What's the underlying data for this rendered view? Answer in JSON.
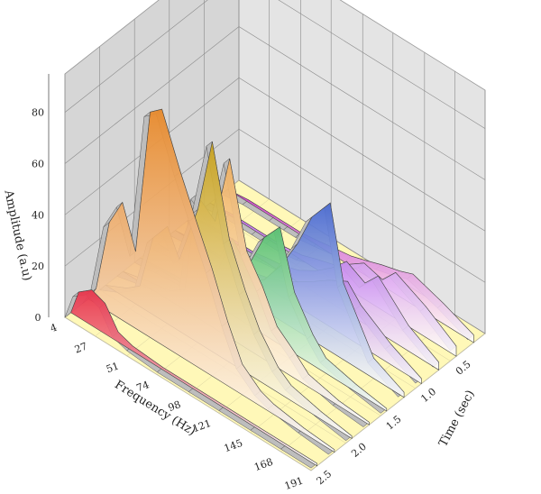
{
  "chart_data": {
    "type": "3d-waterfall",
    "title": "",
    "xlabel": "Frequency (Hz)",
    "ylabel": "Time (sec)",
    "zlabel": "Amplitude (a.u)",
    "x_ticks": [
      "4",
      "27",
      "51",
      "74",
      "98",
      "121",
      "145",
      "168",
      "191"
    ],
    "y_ticks": [
      "0.5",
      "1.0",
      "1.5",
      "2.0",
      "2.5"
    ],
    "z_ticks": [
      "0",
      "20",
      "40",
      "60",
      "80"
    ],
    "zlim": [
      0,
      95
    ],
    "grid": true,
    "colors": {
      "floor": "#fff8b8",
      "back_wall": "#d6d6d6",
      "side_wall": "#e4e4e4",
      "grid": "#8a8a8a"
    },
    "series": [
      {
        "time": 2.5,
        "color": "#e8344a",
        "x": [
          4,
          10,
          20,
          30,
          40,
          51,
          74,
          98,
          121,
          145,
          168,
          191
        ],
        "values": [
          0,
          10,
          14,
          12,
          4,
          2,
          1,
          1,
          1,
          1,
          1,
          1
        ]
      },
      {
        "time": 2.25,
        "color": "#e88a2c",
        "x": [
          4,
          10,
          20,
          30,
          40,
          51,
          60,
          74,
          85,
          98,
          110,
          121,
          135,
          145,
          168,
          191
        ],
        "values": [
          0,
          6,
          35,
          46,
          30,
          88,
          92,
          72,
          58,
          42,
          25,
          12,
          6,
          4,
          2,
          1
        ]
      },
      {
        "time": 2.0,
        "color": "#c9a21c",
        "x": [
          4,
          20,
          30,
          40,
          51,
          60,
          74,
          85,
          98,
          110,
          121,
          135,
          145,
          168,
          191
        ],
        "values": [
          0,
          4,
          8,
          30,
          38,
          28,
          52,
          82,
          48,
          32,
          20,
          10,
          6,
          3,
          1
        ]
      },
      {
        "time": 1.75,
        "color": "#f0b060",
        "x": [
          4,
          20,
          40,
          51,
          60,
          74,
          85,
          98,
          110,
          121,
          135,
          145,
          168,
          191
        ],
        "values": [
          0,
          2,
          4,
          8,
          48,
          42,
          70,
          38,
          28,
          16,
          10,
          5,
          2,
          1
        ]
      },
      {
        "time": 1.5,
        "color": "#58c070",
        "x": [
          4,
          20,
          40,
          51,
          60,
          74,
          85,
          98,
          110,
          121,
          135,
          145,
          168,
          191
        ],
        "values": [
          0,
          1,
          2,
          4,
          10,
          30,
          22,
          38,
          46,
          24,
          12,
          6,
          3,
          1
        ]
      },
      {
        "time": 1.25,
        "color": "#4a6ad0",
        "x": [
          4,
          20,
          40,
          51,
          60,
          74,
          85,
          98,
          110,
          121,
          135,
          145,
          168,
          191
        ],
        "values": [
          0,
          1,
          1,
          2,
          4,
          8,
          12,
          22,
          34,
          48,
          58,
          30,
          8,
          2
        ]
      },
      {
        "time": 1.0,
        "color": "#a050e0",
        "x": [
          4,
          20,
          40,
          51,
          60,
          74,
          85,
          98,
          110,
          121,
          135,
          145,
          168,
          191
        ],
        "values": [
          0,
          1,
          1,
          1,
          2,
          4,
          6,
          10,
          14,
          18,
          22,
          16,
          8,
          2
        ]
      },
      {
        "time": 0.75,
        "color": "#b058e8",
        "x": [
          4,
          20,
          40,
          51,
          60,
          74,
          85,
          98,
          110,
          121,
          135,
          145,
          168,
          191
        ],
        "values": [
          0,
          1,
          1,
          1,
          2,
          3,
          5,
          9,
          14,
          20,
          16,
          22,
          10,
          3
        ]
      },
      {
        "time": 0.5,
        "color": "#c060e8",
        "x": [
          4,
          20,
          40,
          51,
          60,
          74,
          85,
          98,
          110,
          121,
          135,
          145,
          168,
          191
        ],
        "values": [
          0,
          1,
          1,
          1,
          1,
          2,
          4,
          6,
          10,
          14,
          12,
          18,
          12,
          4
        ]
      },
      {
        "time": 0.25,
        "color": "#d03ec8",
        "x": [
          4,
          20,
          40,
          51,
          60,
          74,
          85,
          98,
          110,
          121,
          135,
          145,
          168,
          191
        ],
        "values": [
          0,
          1,
          1,
          1,
          1,
          2,
          3,
          4,
          6,
          8,
          10,
          12,
          8,
          3
        ]
      }
    ]
  }
}
